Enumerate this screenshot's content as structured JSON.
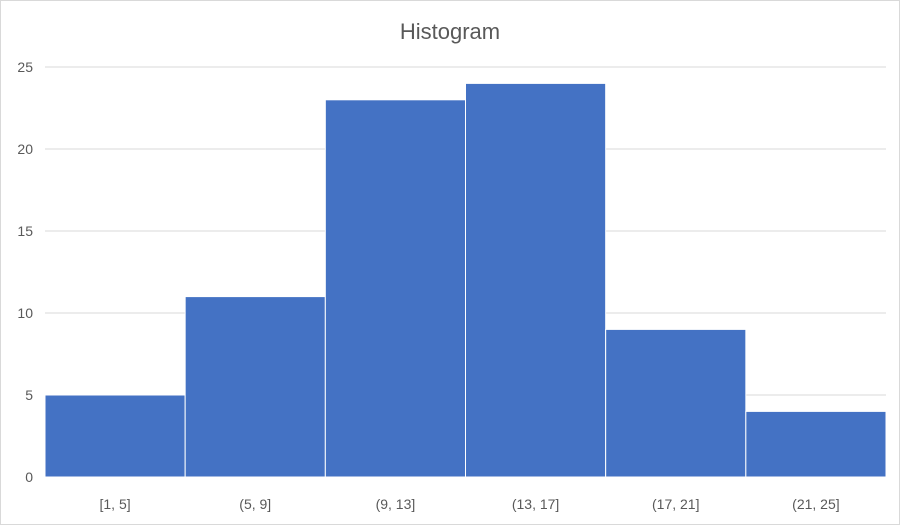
{
  "chart_data": {
    "type": "bar",
    "title": "Histogram",
    "xlabel": "",
    "ylabel": "",
    "categories": [
      "[1, 5]",
      "(5, 9]",
      "(9, 13]",
      "(13, 17]",
      "(17, 21]",
      "(21, 25]"
    ],
    "values": [
      5,
      11,
      23,
      24,
      9,
      4
    ],
    "ylim": [
      0,
      25
    ],
    "yticks": [
      0,
      5,
      10,
      15,
      20,
      25
    ],
    "grid": true,
    "legend": "none",
    "bar_color": "#4472C4",
    "gridline_color": "#d9d9d9",
    "text_color": "#595959"
  }
}
